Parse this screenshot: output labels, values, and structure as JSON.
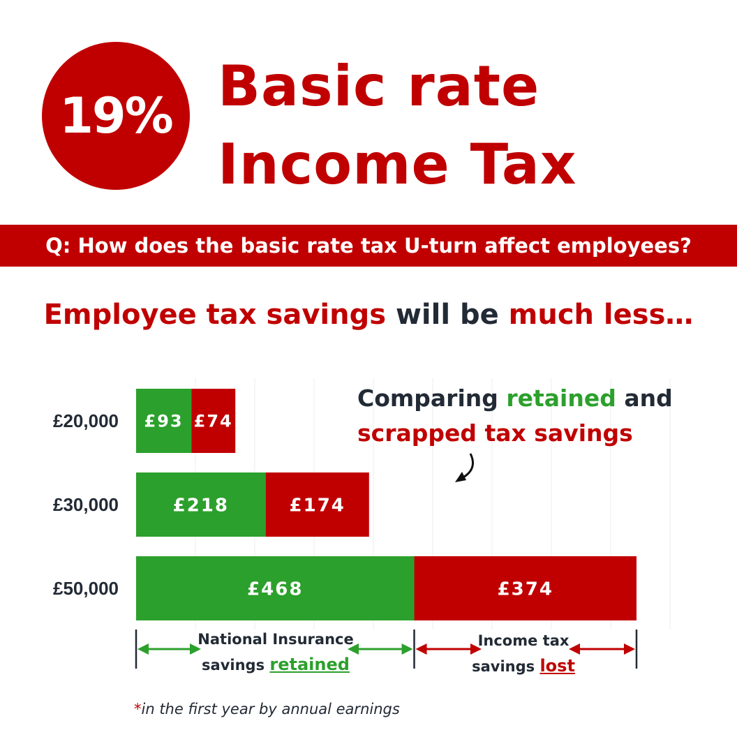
{
  "badge": {
    "text": "19%"
  },
  "title": {
    "line1": "Basic rate",
    "line2": "Income Tax"
  },
  "question": "Q: How does the basic rate tax U-turn affect employees?",
  "headline": {
    "part1": "Employee tax savings",
    "part2": " will be ",
    "part3": "much less…"
  },
  "annotation": {
    "line1_a": "Comparing ",
    "line1_b": "retained",
    "line1_c": " and",
    "line2": "scrapped tax savings"
  },
  "legend": {
    "left_line1": "National Insurance",
    "left_line2_a": "savings ",
    "left_line2_b": "retained",
    "right_line1": "Income tax",
    "right_line2_a": "savings ",
    "right_line2_b": "lost"
  },
  "footnote": {
    "star": "*",
    "text": "in the first year by annual earnings"
  },
  "colors": {
    "red": "#c00000",
    "green": "#2ca02c",
    "dark": "#222a35"
  },
  "chart_data": {
    "type": "bar",
    "orientation": "horizontal",
    "stacked": true,
    "categories": [
      "£20,000",
      "£30,000",
      "£50,000"
    ],
    "series": [
      {
        "name": "National Insurance savings retained",
        "values": [
          93,
          218,
          468
        ],
        "labels": [
          "£93",
          "£218",
          "£468"
        ],
        "color": "#2ca02c"
      },
      {
        "name": "Income tax savings lost",
        "values": [
          74,
          174,
          374
        ],
        "labels": [
          "£74",
          "£174",
          "£374"
        ],
        "color": "#c00000"
      }
    ],
    "xlim": [
      0,
      900
    ],
    "grid": true
  }
}
